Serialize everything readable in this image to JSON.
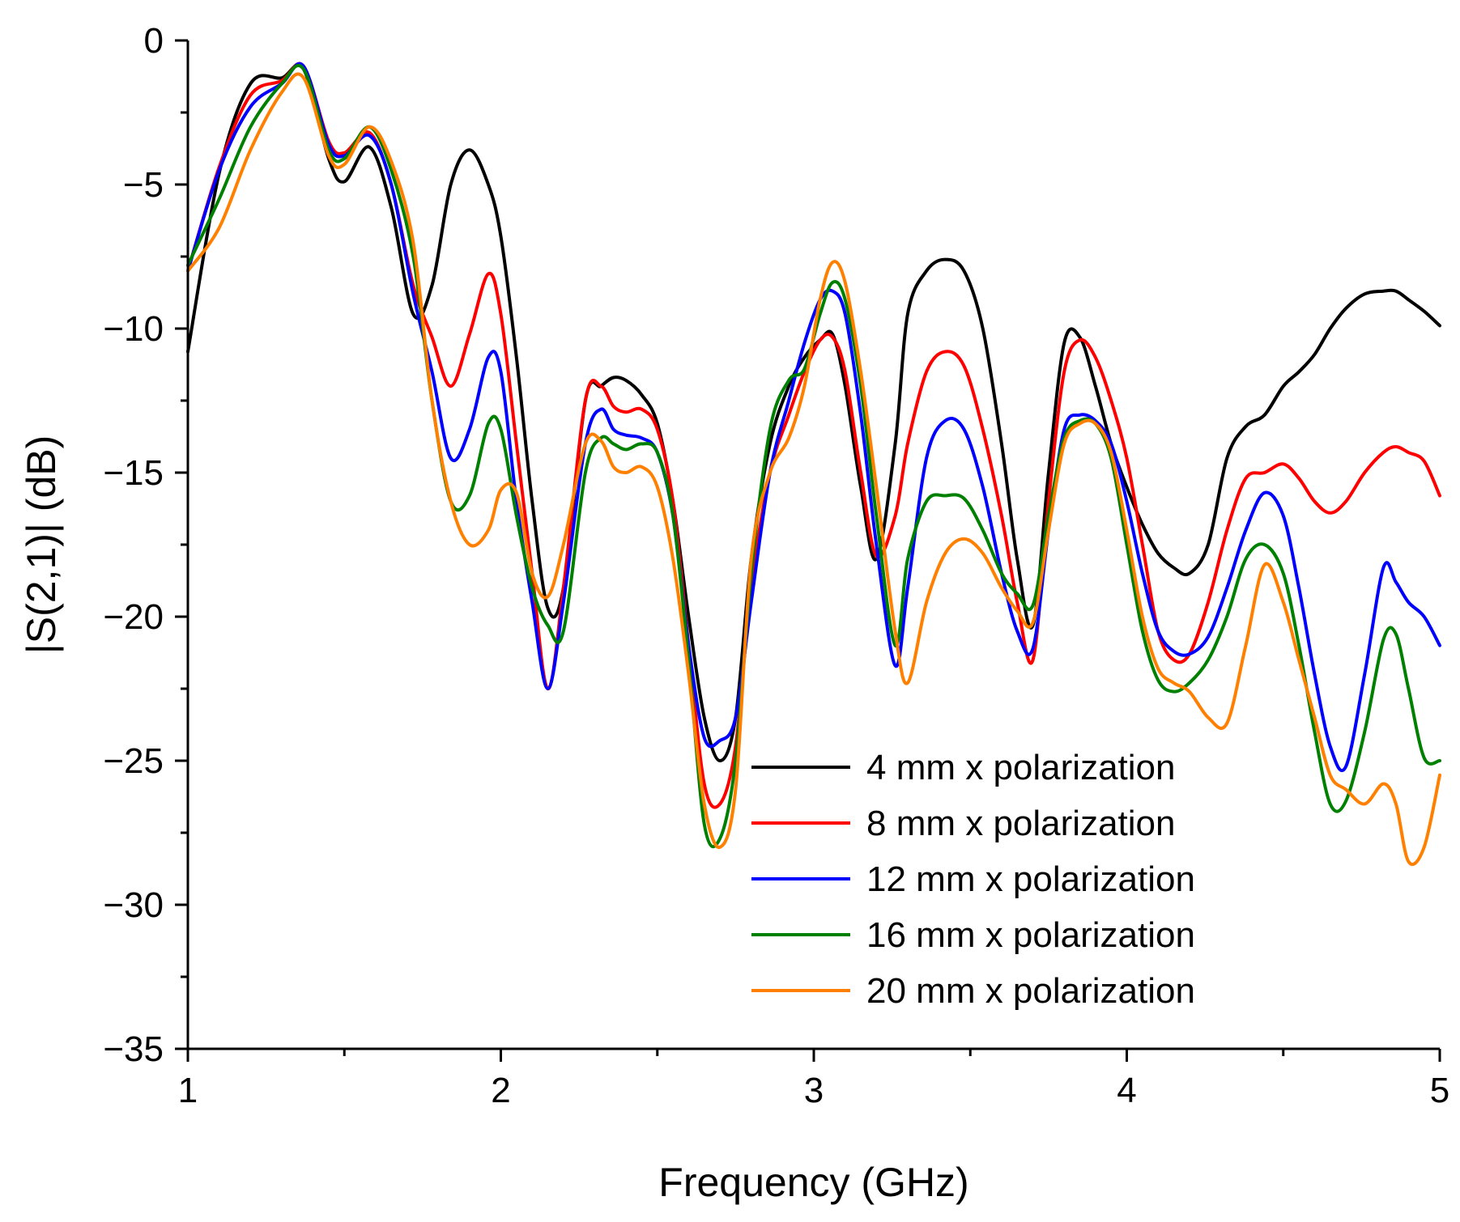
{
  "chart_data": {
    "type": "line",
    "xlabel": "Frequency (GHz)",
    "ylabel": "|S(2,1)| (dB)",
    "xlim": [
      1,
      5
    ],
    "ylim": [
      -35,
      0
    ],
    "x_ticks": [
      1,
      2,
      3,
      4,
      5
    ],
    "x_tick_labels": [
      "1",
      "2",
      "3",
      "4",
      "5"
    ],
    "y_ticks": [
      0,
      -5,
      -10,
      -15,
      -20,
      -25,
      -30,
      -35
    ],
    "y_tick_labels": [
      "0",
      "−5",
      "−10",
      "−15",
      "−20",
      "−25",
      "−30",
      "−35"
    ],
    "legend_position": "bottom-right",
    "x": [
      1.0,
      1.1,
      1.2,
      1.3,
      1.37,
      1.45,
      1.5,
      1.58,
      1.65,
      1.72,
      1.78,
      1.84,
      1.9,
      1.96,
      2.0,
      2.05,
      2.1,
      2.15,
      2.2,
      2.27,
      2.32,
      2.36,
      2.4,
      2.45,
      2.5,
      2.55,
      2.6,
      2.65,
      2.7,
      2.75,
      2.8,
      2.86,
      2.92,
      2.97,
      3.02,
      3.06,
      3.1,
      3.15,
      3.2,
      3.26,
      3.3,
      3.36,
      3.42,
      3.48,
      3.54,
      3.6,
      3.65,
      3.7,
      3.75,
      3.8,
      3.85,
      3.9,
      3.95,
      4.0,
      4.05,
      4.1,
      4.15,
      4.2,
      4.26,
      4.32,
      4.38,
      4.44,
      4.5,
      4.55,
      4.6,
      4.65,
      4.7,
      4.76,
      4.82,
      4.86,
      4.9,
      4.95,
      5.0
    ],
    "series": [
      {
        "name": "4 mm x polarization",
        "color": "#000000",
        "values": [
          -10.8,
          -4.6,
          -1.5,
          -1.3,
          -1.0,
          -4.1,
          -4.9,
          -3.7,
          -5.8,
          -9.5,
          -8.5,
          -5.0,
          -3.8,
          -5.0,
          -6.8,
          -11.0,
          -16.0,
          -19.7,
          -19.0,
          -12.5,
          -12.0,
          -11.7,
          -11.8,
          -12.3,
          -13.3,
          -16.0,
          -20.0,
          -23.5,
          -25.0,
          -23.5,
          -18.0,
          -14.0,
          -12.0,
          -11.0,
          -10.4,
          -10.2,
          -12.0,
          -15.5,
          -18.0,
          -14.0,
          -9.5,
          -8.0,
          -7.6,
          -8.0,
          -10.0,
          -14.0,
          -18.0,
          -20.3,
          -15.0,
          -10.5,
          -10.3,
          -12.0,
          -14.0,
          -15.5,
          -16.8,
          -17.8,
          -18.3,
          -18.5,
          -17.5,
          -14.5,
          -13.4,
          -13.0,
          -12.0,
          -11.5,
          -10.9,
          -10.0,
          -9.3,
          -8.8,
          -8.7,
          -8.7,
          -9.0,
          -9.4,
          -9.9
        ]
      },
      {
        "name": "8 mm x polarization",
        "color": "#ff0000",
        "values": [
          -8.0,
          -4.4,
          -1.9,
          -1.4,
          -0.9,
          -3.5,
          -3.9,
          -3.2,
          -5.0,
          -8.5,
          -10.3,
          -12.0,
          -10.2,
          -8.1,
          -9.5,
          -14.0,
          -18.5,
          -22.5,
          -19.0,
          -12.5,
          -12.0,
          -12.7,
          -12.9,
          -12.8,
          -13.5,
          -16.0,
          -21.0,
          -25.8,
          -26.5,
          -24.5,
          -19.0,
          -15.0,
          -13.0,
          -11.5,
          -10.4,
          -10.3,
          -11.5,
          -15.0,
          -17.9,
          -16.5,
          -14.0,
          -11.5,
          -10.8,
          -11.3,
          -13.5,
          -16.5,
          -19.5,
          -21.5,
          -16.0,
          -11.5,
          -10.4,
          -11.0,
          -12.5,
          -14.5,
          -17.5,
          -20.5,
          -21.5,
          -21.3,
          -19.5,
          -17.0,
          -15.2,
          -15.0,
          -14.7,
          -15.2,
          -16.0,
          -16.4,
          -16.0,
          -15.0,
          -14.3,
          -14.1,
          -14.3,
          -14.6,
          -15.8
        ]
      },
      {
        "name": "12 mm x polarization",
        "color": "#0000ff",
        "values": [
          -8.0,
          -4.5,
          -2.3,
          -1.5,
          -0.9,
          -3.6,
          -4.0,
          -3.3,
          -5.0,
          -8.8,
          -11.5,
          -14.5,
          -13.5,
          -11.0,
          -11.5,
          -16.0,
          -19.5,
          -22.5,
          -19.5,
          -14.0,
          -12.8,
          -13.5,
          -13.7,
          -13.8,
          -14.3,
          -16.5,
          -21.0,
          -24.2,
          -24.3,
          -23.5,
          -19.5,
          -15.0,
          -12.5,
          -10.5,
          -9.0,
          -8.7,
          -9.5,
          -13.0,
          -17.5,
          -21.7,
          -19.0,
          -14.5,
          -13.2,
          -13.5,
          -15.5,
          -18.5,
          -20.5,
          -21.1,
          -17.0,
          -13.5,
          -13.0,
          -13.2,
          -14.0,
          -16.0,
          -18.5,
          -20.5,
          -21.2,
          -21.3,
          -20.7,
          -19.0,
          -17.0,
          -15.7,
          -16.5,
          -19.0,
          -22.0,
          -24.5,
          -25.2,
          -22.0,
          -18.3,
          -18.8,
          -19.5,
          -20.0,
          -21.0
        ]
      },
      {
        "name": "16 mm x polarization",
        "color": "#008000",
        "values": [
          -7.8,
          -5.5,
          -3.0,
          -1.5,
          -1.0,
          -3.8,
          -4.1,
          -3.0,
          -4.5,
          -7.5,
          -12.5,
          -16.0,
          -15.8,
          -13.3,
          -13.5,
          -16.5,
          -19.0,
          -20.3,
          -20.5,
          -15.0,
          -13.8,
          -14.0,
          -14.2,
          -14.0,
          -14.3,
          -16.5,
          -21.5,
          -27.2,
          -27.7,
          -25.0,
          -18.5,
          -13.5,
          -11.8,
          -11.4,
          -9.5,
          -8.4,
          -9.0,
          -12.0,
          -16.5,
          -21.0,
          -18.0,
          -16.0,
          -15.8,
          -15.9,
          -17.0,
          -18.5,
          -19.2,
          -19.6,
          -16.5,
          -13.8,
          -13.2,
          -13.3,
          -14.5,
          -17.5,
          -20.5,
          -22.2,
          -22.6,
          -22.3,
          -21.5,
          -20.0,
          -18.0,
          -17.5,
          -18.5,
          -21.0,
          -24.0,
          -26.5,
          -26.4,
          -24.0,
          -20.8,
          -20.6,
          -22.5,
          -24.9,
          -25.0
        ]
      },
      {
        "name": "20 mm x polarization",
        "color": "#ff8000",
        "values": [
          -8.0,
          -6.5,
          -3.8,
          -1.8,
          -1.3,
          -4.0,
          -4.3,
          -3.0,
          -4.2,
          -7.0,
          -12.5,
          -16.0,
          -17.5,
          -17.0,
          -15.6,
          -15.7,
          -18.5,
          -19.3,
          -17.5,
          -14.0,
          -13.9,
          -14.8,
          -15.0,
          -14.8,
          -15.5,
          -18.0,
          -22.0,
          -26.5,
          -28.0,
          -26.0,
          -18.0,
          -15.0,
          -13.8,
          -12.0,
          -9.0,
          -7.7,
          -8.4,
          -11.5,
          -15.5,
          -20.5,
          -22.3,
          -19.5,
          -17.8,
          -17.3,
          -17.8,
          -19.0,
          -19.8,
          -20.2,
          -17.0,
          -14.0,
          -13.3,
          -13.3,
          -14.3,
          -17.0,
          -20.0,
          -21.8,
          -22.3,
          -22.6,
          -23.5,
          -23.7,
          -21.0,
          -18.2,
          -19.5,
          -21.5,
          -23.5,
          -25.5,
          -26.0,
          -26.5,
          -25.8,
          -26.5,
          -28.5,
          -28.0,
          -25.5
        ]
      }
    ]
  }
}
